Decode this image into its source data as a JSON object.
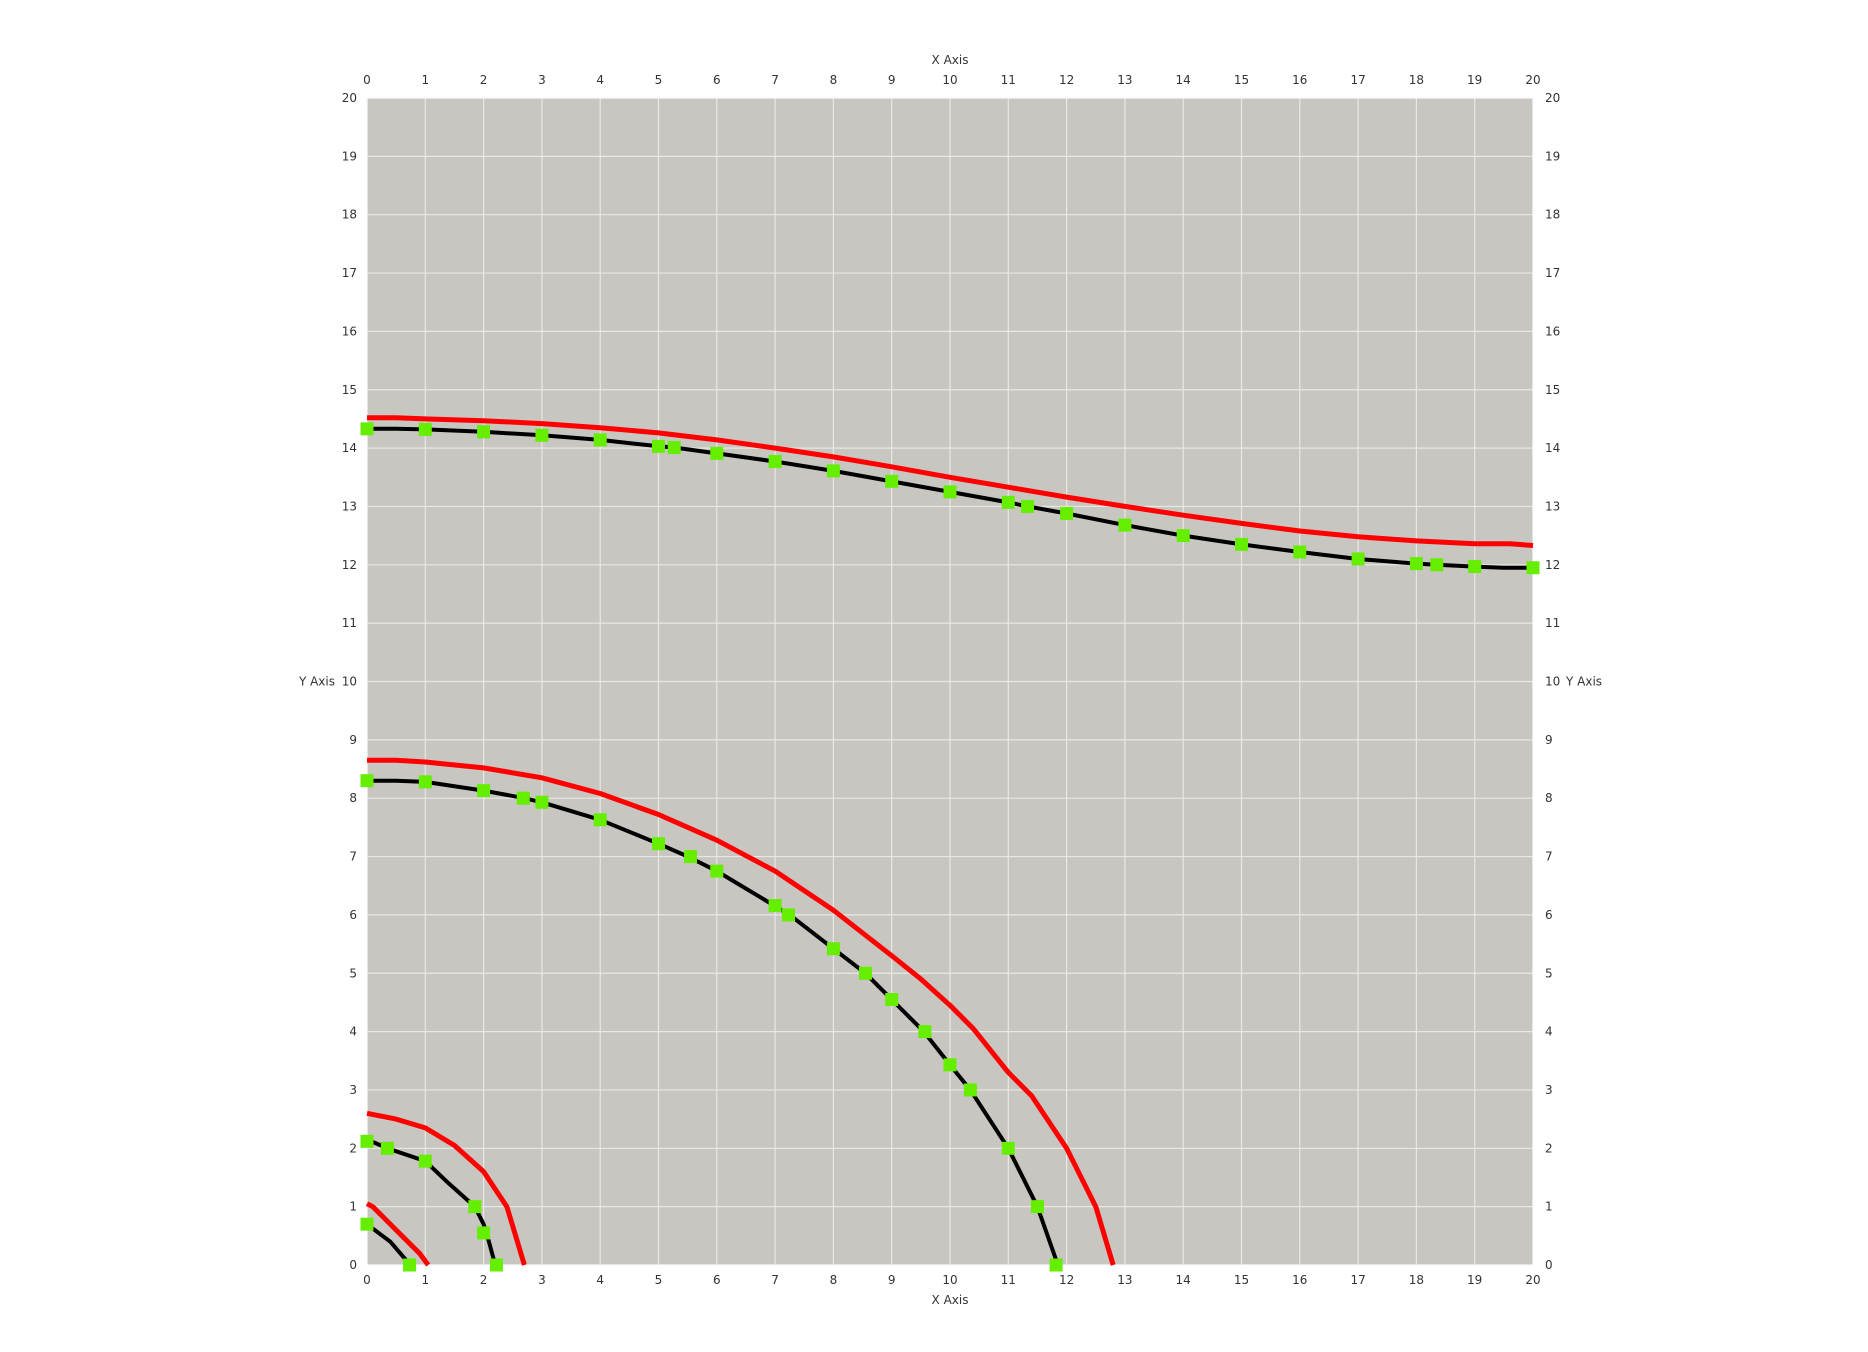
{
  "chart_data": {
    "type": "line",
    "title": "",
    "xlabel": "X Axis",
    "ylabel": "Y Axis",
    "xlim": [
      0,
      20
    ],
    "ylim": [
      0,
      20
    ],
    "xticks": [
      0,
      1,
      2,
      3,
      4,
      5,
      6,
      7,
      8,
      9,
      10,
      11,
      12,
      13,
      14,
      15,
      16,
      17,
      18,
      19,
      20
    ],
    "yticks": [
      0,
      1,
      2,
      3,
      4,
      5,
      6,
      7,
      8,
      9,
      10,
      11,
      12,
      13,
      14,
      15,
      16,
      17,
      18,
      19,
      20
    ],
    "grid": true,
    "legend": "none",
    "colors": {
      "background": "#c8c6c0",
      "grid": "#e8e8e4",
      "red_line": "#ff0000",
      "black_line": "#000000",
      "markers": "#66ee00"
    },
    "red_lines": [
      [
        [
          0,
          1.05
        ],
        [
          0.1,
          1.0
        ],
        [
          0.5,
          0.6
        ],
        [
          0.9,
          0.2
        ],
        [
          1.05,
          0
        ]
      ],
      [
        [
          0,
          2.6
        ],
        [
          0.5,
          2.5
        ],
        [
          1,
          2.35
        ],
        [
          1.5,
          2.05
        ],
        [
          2,
          1.6
        ],
        [
          2.4,
          1.0
        ],
        [
          2.7,
          0
        ]
      ],
      [
        [
          0,
          8.65
        ],
        [
          0.5,
          8.65
        ],
        [
          1,
          8.62
        ],
        [
          2,
          8.52
        ],
        [
          3,
          8.35
        ],
        [
          4,
          8.08
        ],
        [
          5,
          7.72
        ],
        [
          6,
          7.28
        ],
        [
          7,
          6.75
        ],
        [
          8,
          6.08
        ],
        [
          9,
          5.3
        ],
        [
          9.5,
          4.9
        ],
        [
          10,
          4.45
        ],
        [
          10.4,
          4.05
        ],
        [
          11,
          3.3
        ],
        [
          11.4,
          2.9
        ],
        [
          12,
          2.0
        ],
        [
          12.5,
          1.0
        ],
        [
          12.8,
          0
        ]
      ],
      [
        [
          0,
          14.52
        ],
        [
          0.5,
          14.52
        ],
        [
          1,
          14.5
        ],
        [
          2,
          14.47
        ],
        [
          3,
          14.42
        ],
        [
          4,
          14.35
        ],
        [
          5,
          14.26
        ],
        [
          6,
          14.14
        ],
        [
          7,
          14.0
        ],
        [
          8,
          13.85
        ],
        [
          9,
          13.68
        ],
        [
          10,
          13.5
        ],
        [
          11,
          13.33
        ],
        [
          12,
          13.16
        ],
        [
          13,
          13.0
        ],
        [
          14,
          12.85
        ],
        [
          15,
          12.71
        ],
        [
          16,
          12.58
        ],
        [
          17,
          12.48
        ],
        [
          18,
          12.41
        ],
        [
          19,
          12.36
        ],
        [
          19.6,
          12.36
        ],
        [
          20,
          12.33
        ]
      ]
    ],
    "black_lines": [
      [
        [
          0,
          0.7
        ],
        [
          0.4,
          0.4
        ],
        [
          0.7,
          0.05
        ],
        [
          0.75,
          0
        ]
      ],
      [
        [
          0,
          2.15
        ],
        [
          0.35,
          2.0
        ],
        [
          1,
          1.78
        ],
        [
          1.4,
          1.4
        ],
        [
          1.85,
          1.0
        ],
        [
          2,
          0.7
        ],
        [
          2.05,
          0.55
        ],
        [
          2.2,
          0
        ]
      ],
      [
        [
          0,
          8.3
        ],
        [
          0.5,
          8.3
        ],
        [
          1,
          8.28
        ],
        [
          2,
          8.13
        ],
        [
          2.7,
          8.0
        ],
        [
          3,
          7.93
        ],
        [
          4,
          7.63
        ],
        [
          5,
          7.22
        ],
        [
          5.5,
          7.0
        ],
        [
          6,
          6.75
        ],
        [
          7,
          6.15
        ],
        [
          7.25,
          6.0
        ],
        [
          8,
          5.42
        ],
        [
          8.55,
          5.0
        ],
        [
          9,
          4.55
        ],
        [
          9.55,
          4.0
        ],
        [
          10,
          3.43
        ],
        [
          10.35,
          3.0
        ],
        [
          11,
          2.0
        ],
        [
          11.5,
          1.0
        ],
        [
          11.85,
          0
        ]
      ],
      [
        [
          0,
          14.33
        ],
        [
          0.5,
          14.33
        ],
        [
          1,
          14.32
        ],
        [
          2,
          14.28
        ],
        [
          3,
          14.22
        ],
        [
          4,
          14.14
        ],
        [
          5,
          14.03
        ],
        [
          5.27,
          14.01
        ],
        [
          6,
          13.91
        ],
        [
          7,
          13.77
        ],
        [
          8,
          13.61
        ],
        [
          9,
          13.43
        ],
        [
          10,
          13.25
        ],
        [
          11,
          13.07
        ],
        [
          11.33,
          13.0
        ],
        [
          12,
          12.88
        ],
        [
          13,
          12.68
        ],
        [
          14,
          12.5
        ],
        [
          15,
          12.35
        ],
        [
          16,
          12.22
        ],
        [
          17,
          12.1
        ],
        [
          18,
          12.02
        ],
        [
          18.35,
          12.0
        ],
        [
          19,
          11.97
        ],
        [
          19.5,
          11.95
        ],
        [
          20,
          11.95
        ]
      ]
    ],
    "markers": [
      [
        0,
        0.7
      ],
      [
        0.73,
        0
      ],
      [
        0,
        2.12
      ],
      [
        0.35,
        2.0
      ],
      [
        1,
        1.78
      ],
      [
        1.85,
        1.0
      ],
      [
        2,
        0.55
      ],
      [
        2.22,
        0
      ],
      [
        0,
        8.3
      ],
      [
        1,
        8.28
      ],
      [
        2,
        8.13
      ],
      [
        2.68,
        8.0
      ],
      [
        3,
        7.93
      ],
      [
        4,
        7.63
      ],
      [
        5,
        7.22
      ],
      [
        5.55,
        7.0
      ],
      [
        6,
        6.75
      ],
      [
        7,
        6.16
      ],
      [
        7.23,
        6.0
      ],
      [
        8,
        5.42
      ],
      [
        8.55,
        5.0
      ],
      [
        9,
        4.55
      ],
      [
        9.57,
        4.0
      ],
      [
        10,
        3.43
      ],
      [
        10.35,
        3.0
      ],
      [
        11,
        2.0
      ],
      [
        11.5,
        1.0
      ],
      [
        11.82,
        0
      ],
      [
        0,
        14.33
      ],
      [
        1,
        14.32
      ],
      [
        2,
        14.28
      ],
      [
        3,
        14.22
      ],
      [
        4,
        14.14
      ],
      [
        5,
        14.03
      ],
      [
        5.27,
        14.01
      ],
      [
        6,
        13.91
      ],
      [
        7,
        13.77
      ],
      [
        8,
        13.61
      ],
      [
        9,
        13.43
      ],
      [
        10,
        13.25
      ],
      [
        11,
        13.07
      ],
      [
        11.33,
        13.0
      ],
      [
        12,
        12.88
      ],
      [
        13,
        12.68
      ],
      [
        14,
        12.5
      ],
      [
        15,
        12.35
      ],
      [
        16,
        12.22
      ],
      [
        17,
        12.1
      ],
      [
        18,
        12.02
      ],
      [
        18.35,
        12.0
      ],
      [
        19,
        11.97
      ],
      [
        20,
        11.95
      ]
    ]
  }
}
